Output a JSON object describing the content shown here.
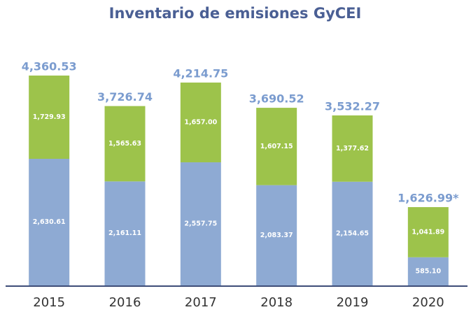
{
  "chart_data": {
    "type": "stacked_bar",
    "title": "Inventario de emisiones GyCEI",
    "categories": [
      "2015",
      "2016",
      "2017",
      "2018",
      "2019",
      "2020"
    ],
    "series": [
      {
        "color": "#8eaad3",
        "values": [
          2630.61,
          2161.11,
          2557.75,
          2083.37,
          2154.65,
          585.1
        ],
        "value_labels": [
          "2,630.61",
          "2,161.11",
          "2,557.75",
          "2,083.37",
          "2,154.65",
          "585.10"
        ]
      },
      {
        "color": "#9dc34b",
        "values": [
          1729.93,
          1565.63,
          1657.0,
          1607.15,
          1377.62,
          1041.89
        ],
        "value_labels": [
          "1,729.93",
          "1,565.63",
          "1,657.00",
          "1,607.15",
          "1,377.62",
          "1,041.89"
        ]
      }
    ],
    "totals": [
      4360.53,
      3726.74,
      4214.75,
      3690.52,
      3532.27,
      1626.99
    ],
    "total_labels": [
      "4,360.53",
      "3,726.74",
      "4,214.75",
      "3,690.52",
      "3,532.27",
      "1,626.99*"
    ],
    "total_color": "#7b9ccf"
  }
}
